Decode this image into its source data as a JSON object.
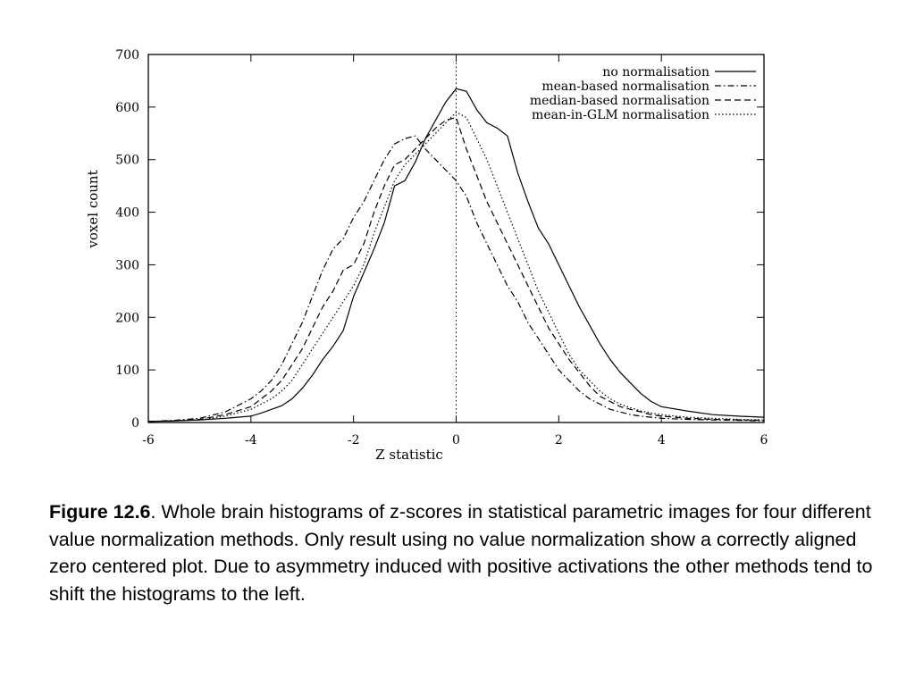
{
  "chart_data": {
    "type": "line",
    "xlabel": "Z statistic",
    "ylabel": "voxel count",
    "xlim": [
      -6,
      6
    ],
    "ylim": [
      0,
      700
    ],
    "xticks": [
      "-6",
      "-4",
      "-2",
      "0",
      "2",
      "4",
      "6"
    ],
    "yticks": [
      "0",
      "100",
      "200",
      "300",
      "400",
      "500",
      "600",
      "700"
    ],
    "legend_position": "top-right",
    "zero_line": "dotted vertical line at x = 0",
    "series": [
      {
        "name": "no normalisation",
        "style": "solid",
        "x": [
          -6,
          -5.5,
          -5,
          -4.5,
          -4,
          -3.8,
          -3.6,
          -3.4,
          -3.2,
          -3,
          -2.8,
          -2.6,
          -2.4,
          -2.2,
          -2,
          -1.8,
          -1.6,
          -1.4,
          -1.2,
          -1,
          -0.8,
          -0.6,
          -0.4,
          -0.2,
          0,
          0.2,
          0.4,
          0.6,
          0.8,
          1,
          1.2,
          1.4,
          1.6,
          1.8,
          2,
          2.2,
          2.4,
          2.6,
          2.8,
          3,
          3.2,
          3.4,
          3.6,
          3.8,
          4,
          4.5,
          5,
          5.5,
          6
        ],
        "y": [
          2,
          3,
          5,
          8,
          12,
          18,
          25,
          32,
          45,
          65,
          90,
          120,
          145,
          175,
          240,
          285,
          330,
          380,
          450,
          460,
          495,
          540,
          575,
          610,
          635,
          630,
          595,
          570,
          560,
          545,
          475,
          420,
          370,
          340,
          300,
          260,
          220,
          185,
          150,
          120,
          95,
          75,
          55,
          40,
          30,
          22,
          15,
          12,
          10
        ]
      },
      {
        "name": "mean-based normalisation",
        "style": "dash-dot",
        "x": [
          -6,
          -5.5,
          -5,
          -4.5,
          -4,
          -3.8,
          -3.6,
          -3.4,
          -3.2,
          -3,
          -2.8,
          -2.6,
          -2.4,
          -2.2,
          -2,
          -1.8,
          -1.6,
          -1.4,
          -1.2,
          -1,
          -0.8,
          -0.6,
          -0.4,
          -0.2,
          0,
          0.2,
          0.4,
          0.6,
          0.8,
          1,
          1.2,
          1.4,
          1.6,
          1.8,
          2,
          2.2,
          2.4,
          2.6,
          2.8,
          3,
          3.2,
          3.4,
          3.6,
          3.8,
          4,
          4.5,
          5,
          5.5,
          6
        ],
        "y": [
          2,
          4,
          8,
          20,
          45,
          60,
          80,
          110,
          150,
          190,
          240,
          290,
          330,
          350,
          390,
          420,
          460,
          500,
          530,
          540,
          545,
          520,
          500,
          480,
          460,
          430,
          380,
          340,
          300,
          260,
          230,
          190,
          160,
          130,
          100,
          80,
          60,
          45,
          35,
          25,
          20,
          15,
          12,
          10,
          8,
          6,
          5,
          4,
          3
        ]
      },
      {
        "name": "median-based normalisation",
        "style": "dashed",
        "x": [
          -6,
          -5.5,
          -5,
          -4.5,
          -4,
          -3.8,
          -3.6,
          -3.4,
          -3.2,
          -3,
          -2.8,
          -2.6,
          -2.4,
          -2.2,
          -2,
          -1.8,
          -1.6,
          -1.4,
          -1.2,
          -1,
          -0.8,
          -0.6,
          -0.4,
          -0.2,
          0,
          0.2,
          0.4,
          0.6,
          0.8,
          1,
          1.2,
          1.4,
          1.6,
          1.8,
          2,
          2.2,
          2.4,
          2.6,
          2.8,
          3,
          3.2,
          3.4,
          3.6,
          3.8,
          4,
          4.5,
          5,
          5.5,
          6
        ],
        "y": [
          2,
          3,
          6,
          15,
          30,
          45,
          60,
          80,
          110,
          140,
          180,
          220,
          250,
          290,
          300,
          340,
          400,
          450,
          490,
          500,
          520,
          540,
          560,
          575,
          580,
          520,
          470,
          420,
          380,
          340,
          300,
          260,
          220,
          180,
          150,
          120,
          95,
          70,
          50,
          40,
          30,
          25,
          20,
          15,
          12,
          8,
          6,
          5,
          4
        ]
      },
      {
        "name": "mean-in-GLM normalisation",
        "style": "dotted",
        "x": [
          -6,
          -5.5,
          -5,
          -4.5,
          -4,
          -3.8,
          -3.6,
          -3.4,
          -3.2,
          -3,
          -2.8,
          -2.6,
          -2.4,
          -2.2,
          -2,
          -1.8,
          -1.6,
          -1.4,
          -1.2,
          -1,
          -0.8,
          -0.6,
          -0.4,
          -0.2,
          0,
          0.2,
          0.4,
          0.6,
          0.8,
          1,
          1.2,
          1.4,
          1.6,
          1.8,
          2,
          2.2,
          2.4,
          2.6,
          2.8,
          3,
          3.2,
          3.4,
          3.6,
          3.8,
          4,
          4.5,
          5,
          5.5,
          6
        ],
        "y": [
          2,
          3,
          5,
          12,
          25,
          35,
          45,
          60,
          80,
          110,
          140,
          170,
          200,
          230,
          260,
          300,
          360,
          410,
          460,
          490,
          510,
          530,
          550,
          570,
          590,
          580,
          540,
          500,
          450,
          400,
          350,
          300,
          250,
          210,
          170,
          130,
          100,
          80,
          60,
          45,
          35,
          28,
          22,
          18,
          15,
          10,
          8,
          6,
          5
        ]
      }
    ]
  },
  "caption": {
    "label": "Figure 12.6",
    "text": ". Whole brain histograms of z-scores in statistical parametric images for four different value normalization methods.  Only result using no value normalization show a correctly aligned zero centered plot.  Due to asymmetry induced with positive activations the other methods tend to shift the histograms to the left."
  }
}
